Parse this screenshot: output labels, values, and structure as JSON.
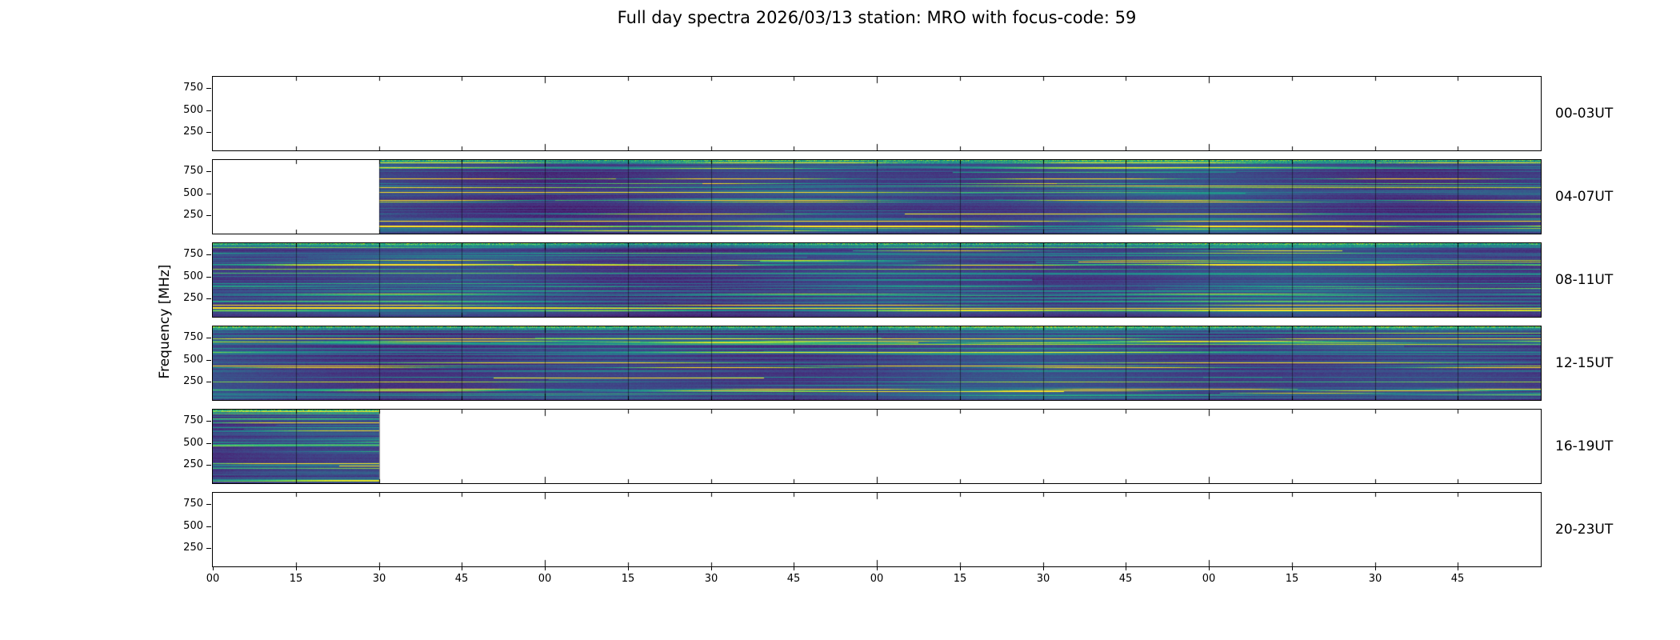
{
  "title": "Full day spectra 2026/03/13 station: MRO with focus-code: 59",
  "ylabel": "Frequency [MHz]",
  "chart_data": {
    "type": "heatmap",
    "subtype": "spectrogram-grid",
    "title": "Full day spectra 2026/03/13 station: MRO with focus-code: 59",
    "date": "2026/03/13",
    "station": "MRO",
    "focus_code": "59",
    "ylabel": "Frequency [MHz]",
    "y_ticks": [
      750,
      500,
      250
    ],
    "y_range": [
      45,
      880
    ],
    "x_tick_labels": [
      "00",
      "15",
      "30",
      "45",
      "00",
      "15",
      "30",
      "45",
      "00",
      "15",
      "30",
      "45",
      "00",
      "15",
      "30",
      "45"
    ],
    "segments_per_row": 16,
    "minutes_per_segment": 15,
    "grid": false,
    "legend": "none",
    "colormap": "viridis",
    "colors": {
      "colormap_low": "#440154",
      "colormap_mid": "#21918c",
      "colormap_high": "#fde725",
      "background": "#ffffff",
      "axes": "#000000"
    },
    "rows": [
      {
        "label": "00-03UT",
        "filled_segments": [],
        "coverage": "no data"
      },
      {
        "label": "04-07UT",
        "filled_segments": [
          2,
          3,
          4,
          5,
          6,
          7,
          8,
          9,
          10,
          11,
          12,
          13,
          14,
          15
        ],
        "coverage": "data from 04:30 onward"
      },
      {
        "label": "08-11UT",
        "filled_segments": [
          0,
          1,
          2,
          3,
          4,
          5,
          6,
          7,
          8,
          9,
          10,
          11,
          12,
          13,
          14,
          15
        ],
        "coverage": "full"
      },
      {
        "label": "12-15UT",
        "filled_segments": [
          0,
          1,
          2,
          3,
          4,
          5,
          6,
          7,
          8,
          9,
          10,
          11,
          12,
          13,
          14,
          15
        ],
        "coverage": "full"
      },
      {
        "label": "16-19UT",
        "filled_segments": [
          0,
          1
        ],
        "coverage": "data until 16:30"
      },
      {
        "label": "20-23UT",
        "filled_segments": [],
        "coverage": "no data"
      }
    ]
  }
}
